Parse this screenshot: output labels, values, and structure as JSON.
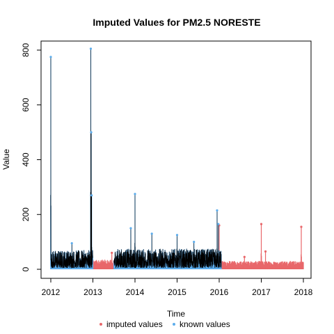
{
  "chart_data": {
    "type": "line",
    "title": "Imputed Values for  PM2.5 NORESTE",
    "xlabel": "Time",
    "ylabel": "Value",
    "xlim": [
      2012,
      2018
    ],
    "ylim": [
      0,
      800
    ],
    "x_ticks": [
      "2012",
      "2013",
      "2014",
      "2015",
      "2016",
      "2017",
      "2018"
    ],
    "y_ticks": [
      "0",
      "200",
      "400",
      "600",
      "800"
    ],
    "colors": {
      "imputed": "#E8676A",
      "known": "#5DADEC",
      "line": "#000000"
    },
    "legend_position": "bottom",
    "series": [
      {
        "name": "imputed values",
        "segments": [
          {
            "from": 2013.0,
            "to": 2013.5,
            "typical_low": 5,
            "typical_high": 35,
            "peaks": [
              {
                "x": 2013.45,
                "y": 60
              }
            ]
          },
          {
            "from": 2016.05,
            "to": 2018.0,
            "typical_low": 5,
            "typical_high": 30,
            "peaks": [
              {
                "x": 2016.0,
                "y": 160
              },
              {
                "x": 2017.0,
                "y": 165
              },
              {
                "x": 2017.1,
                "y": 65
              },
              {
                "x": 2017.95,
                "y": 155
              },
              {
                "x": 2016.6,
                "y": 45
              }
            ]
          }
        ]
      },
      {
        "name": "known values",
        "segments": [
          {
            "from": 2012.0,
            "to": 2013.0,
            "typical_low": 5,
            "typical_high": 70,
            "peaks": [
              {
                "x": 2012.0,
                "y": 775
              },
              {
                "x": 2012.5,
                "y": 95
              },
              {
                "x": 2012.95,
                "y": 805
              },
              {
                "x": 2012.96,
                "y": 500
              },
              {
                "x": 2012.97,
                "y": 270
              }
            ]
          },
          {
            "from": 2013.5,
            "to": 2016.05,
            "typical_low": 5,
            "typical_high": 75,
            "peaks": [
              {
                "x": 2013.9,
                "y": 150
              },
              {
                "x": 2014.0,
                "y": 275
              },
              {
                "x": 2014.4,
                "y": 130
              },
              {
                "x": 2015.0,
                "y": 125
              },
              {
                "x": 2015.4,
                "y": 100
              },
              {
                "x": 2015.95,
                "y": 215
              },
              {
                "x": 2015.98,
                "y": 165
              }
            ]
          }
        ]
      }
    ]
  }
}
